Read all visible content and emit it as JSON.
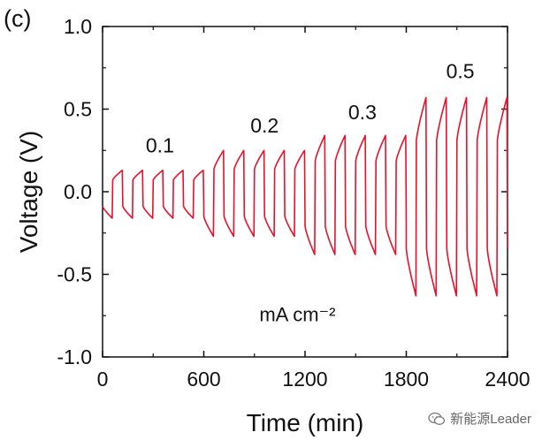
{
  "panel_label": "(c)",
  "watermark": "新能源Leader",
  "chart_data": {
    "type": "line",
    "xlabel": "Time (min)",
    "ylabel": "Voltage (V)",
    "xlim": [
      0,
      2400
    ],
    "ylim": [
      -1.0,
      1.0
    ],
    "xticks": [
      "0",
      "600",
      "1200",
      "1800",
      "2400"
    ],
    "yticks": [
      "-1.0",
      "-0.5",
      "0.0",
      "0.5",
      "1.0"
    ],
    "grid": false,
    "unit_annotation": "mA cm⁻²",
    "line_color": "#e8102a",
    "current_labels": [
      {
        "text": "0.1",
        "x": 340,
        "y": 0.28
      },
      {
        "text": "0.2",
        "x": 960,
        "y": 0.4
      },
      {
        "text": "0.3",
        "x": 1540,
        "y": 0.48
      },
      {
        "text": "0.5",
        "x": 2120,
        "y": 0.73
      }
    ],
    "segments": [
      {
        "label": "0.1",
        "start": 0,
        "end": 600,
        "cycles": 5,
        "v_top": 0.13,
        "v_bottom": -0.16
      },
      {
        "label": "0.2",
        "start": 600,
        "end": 1200,
        "cycles": 5,
        "v_top": 0.25,
        "v_bottom": -0.27
      },
      {
        "label": "0.3",
        "start": 1200,
        "end": 1800,
        "cycles": 5,
        "v_top": 0.34,
        "v_bottom": -0.38
      },
      {
        "label": "0.5",
        "start": 1800,
        "end": 2400,
        "cycles": 5,
        "v_top": 0.57,
        "v_bottom": -0.63
      }
    ]
  }
}
